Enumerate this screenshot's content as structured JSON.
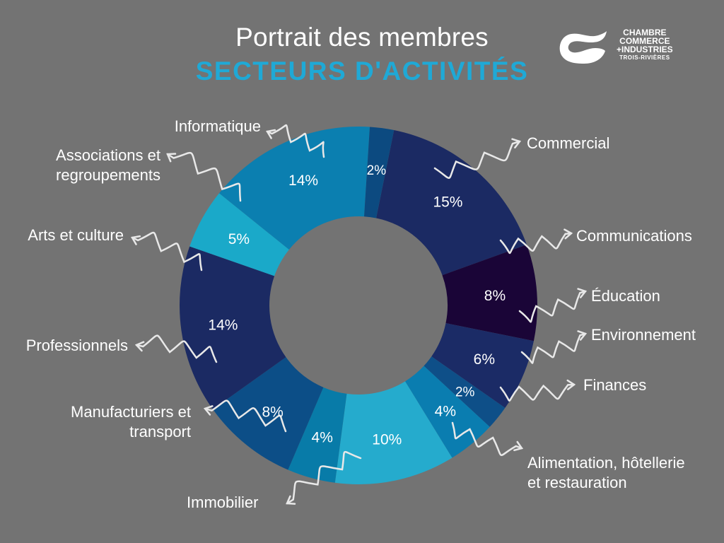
{
  "header": {
    "title": "Portrait des membres",
    "subtitle": "SECTEURS D'ACTIVITÉS"
  },
  "logo": {
    "line1": "CHAMBRE",
    "line2": "COMMERCE",
    "line3": "+INDUSTRIES",
    "line4": "TROIS-RIVIÈRES"
  },
  "colors": {
    "background": "#737373",
    "subtitle": "#1fa9d6"
  },
  "chart_data": {
    "type": "pie",
    "variant": "donut",
    "unit": "%",
    "categories": [
      "Commercial",
      "Communications",
      "Éducation",
      "Environnement",
      "Finances",
      "Alimentation, hôtellerie et restauration",
      "Immobilier",
      "Manufacturiers et transport",
      "Professionnels",
      "Arts et culture",
      "Associations et regroupements",
      "Informatique"
    ],
    "values": [
      15,
      8,
      6,
      2,
      4,
      10,
      4,
      8,
      14,
      5,
      14,
      2
    ],
    "data_labels": [
      "15%",
      "8%",
      "6%",
      "2%",
      "4%",
      "10%",
      "4%",
      "8%",
      "14%",
      "5%",
      "14%",
      "2%"
    ],
    "colors": [
      "#1b2a63",
      "#1a0537",
      "#1b2b66",
      "#0e4f88",
      "#0a7db0",
      "#25abcd",
      "#087ba8",
      "#0c4e87",
      "#1b2a63",
      "#1aa9c9",
      "#0b7fb0",
      "#0c4a80"
    ],
    "legend": "callouts with curly arrows"
  }
}
